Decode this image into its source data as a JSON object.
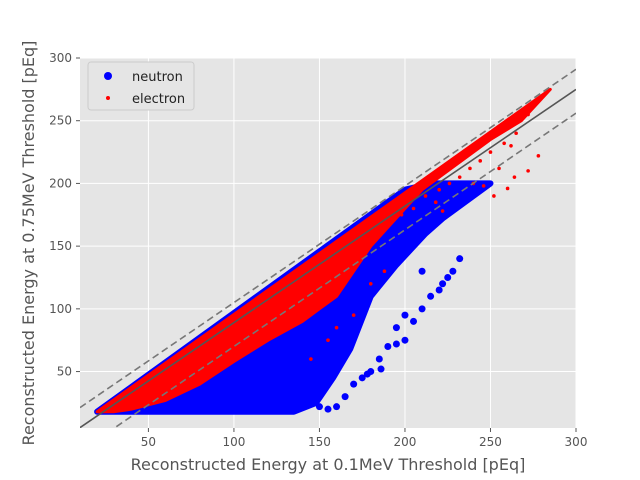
{
  "chart_data": {
    "type": "scatter",
    "xlabel": "Reconstructed Energy at 0.1MeV Threshold [pEq]",
    "ylabel": "Reconstructed Energy at 0.75MeV Threshold [pEq]",
    "xlim": [
      10,
      300
    ],
    "ylim": [
      5,
      300
    ],
    "xticks": [
      50,
      100,
      150,
      200,
      250,
      300
    ],
    "yticks": [
      50,
      100,
      150,
      200,
      250,
      300
    ],
    "grid": true,
    "legend_position": "top-left",
    "style": "ggplot",
    "series": [
      {
        "name": "neutron",
        "color": "#0000ff",
        "marker": "circle-large",
        "region": [
          [
            20,
            18
          ],
          [
            200,
            195
          ],
          [
            216,
            200
          ],
          [
            250,
            200
          ],
          [
            222,
            172
          ],
          [
            212,
            160
          ],
          [
            195,
            135
          ],
          [
            180,
            110
          ],
          [
            168,
            68
          ],
          [
            158,
            45
          ],
          [
            148,
            25
          ],
          [
            135,
            18
          ]
        ],
        "outliers": [
          [
            145,
            25
          ],
          [
            150,
            22
          ],
          [
            155,
            20
          ],
          [
            160,
            22
          ],
          [
            165,
            30
          ],
          [
            170,
            40
          ],
          [
            175,
            45
          ],
          [
            180,
            50
          ],
          [
            186,
            52
          ],
          [
            190,
            70
          ],
          [
            195,
            72
          ],
          [
            200,
            75
          ],
          [
            205,
            90
          ],
          [
            210,
            100
          ],
          [
            215,
            110
          ],
          [
            220,
            115
          ],
          [
            222,
            120
          ],
          [
            225,
            125
          ],
          [
            228,
            130
          ],
          [
            232,
            140
          ],
          [
            210,
            130
          ],
          [
            200,
            95
          ],
          [
            195,
            85
          ],
          [
            185,
            60
          ],
          [
            178,
            48
          ]
        ]
      },
      {
        "name": "electron",
        "color": "#ff0000",
        "marker": "circle-small",
        "region": [
          [
            20,
            18
          ],
          [
            285,
            275
          ],
          [
            268,
            250
          ],
          [
            250,
            235
          ],
          [
            210,
            195
          ],
          [
            190,
            165
          ],
          [
            180,
            150
          ],
          [
            160,
            110
          ],
          [
            150,
            100
          ],
          [
            140,
            90
          ],
          [
            120,
            75
          ],
          [
            100,
            58
          ],
          [
            80,
            40
          ],
          [
            60,
            27
          ],
          [
            40,
            20
          ],
          [
            30,
            18
          ]
        ],
        "outliers": [
          [
            272,
            255
          ],
          [
            265,
            240
          ],
          [
            258,
            232
          ],
          [
            250,
            225
          ],
          [
            244,
            218
          ],
          [
            238,
            212
          ],
          [
            232,
            205
          ],
          [
            226,
            200
          ],
          [
            220,
            195
          ],
          [
            240,
            200
          ],
          [
            246,
            198
          ],
          [
            252,
            190
          ],
          [
            260,
            196
          ],
          [
            264,
            205
          ],
          [
            272,
            210
          ],
          [
            278,
            222
          ],
          [
            262,
            230
          ],
          [
            255,
            212
          ],
          [
            150,
            118
          ],
          [
            140,
            110
          ],
          [
            120,
            85
          ],
          [
            110,
            72
          ],
          [
            100,
            60
          ],
          [
            155,
            75
          ],
          [
            145,
            60
          ],
          [
            160,
            85
          ],
          [
            170,
            95
          ],
          [
            180,
            120
          ],
          [
            188,
            130
          ],
          [
            198,
            175
          ],
          [
            205,
            180
          ],
          [
            212,
            190
          ],
          [
            218,
            185
          ],
          [
            222,
            178
          ]
        ]
      }
    ],
    "reference_lines": [
      {
        "slope": 0.93,
        "intercept": -4,
        "style": "solid",
        "color": "#555555"
      },
      {
        "slope": 0.93,
        "intercept": 12,
        "style": "dashed",
        "color": "#777777"
      },
      {
        "slope": 0.93,
        "intercept": -23,
        "style": "dashed",
        "color": "#777777"
      }
    ]
  }
}
